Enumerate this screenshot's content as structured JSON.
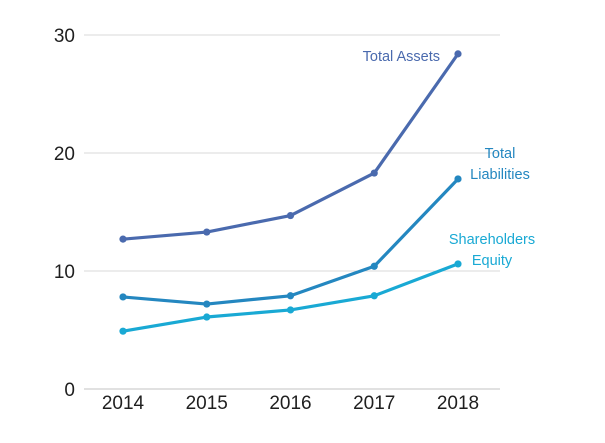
{
  "chart_data": {
    "type": "line",
    "title": "",
    "xlabel": "",
    "ylabel": "",
    "categories": [
      "2014",
      "2015",
      "2016",
      "2017",
      "2018"
    ],
    "ylim": [
      0,
      30
    ],
    "yticks": [
      0,
      10,
      20,
      30
    ],
    "grid": true,
    "legend": "inline labels at line ends",
    "series": [
      {
        "name": "Total Assets",
        "label_lines": [
          "Total Assets"
        ],
        "values": [
          12.7,
          13.3,
          14.7,
          18.3,
          28.4
        ],
        "color": "#4a6aae"
      },
      {
        "name": "Total Liabilities",
        "label_lines": [
          "Total",
          "Liabilities"
        ],
        "values": [
          7.8,
          7.2,
          7.9,
          10.4,
          17.8
        ],
        "color": "#2487c0"
      },
      {
        "name": "Shareholders Equity",
        "label_lines": [
          "Shareholders",
          "Equity"
        ],
        "values": [
          4.9,
          6.1,
          6.7,
          7.9,
          10.6
        ],
        "color": "#19a9d4"
      }
    ]
  }
}
